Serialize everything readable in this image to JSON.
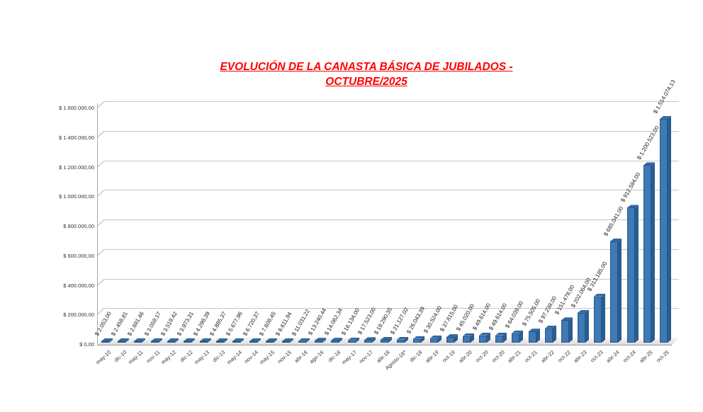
{
  "title": {
    "line1": "EVOLUCIÓN DE LA CANASTA BÁSICA DE JUBILADOS -",
    "line2": "OCTUBRE/2025",
    "color": "#ff0000"
  },
  "chart_data": {
    "type": "bar",
    "title": "EVOLUCIÓN DE LA CANASTA BÁSICA DE JUBILADOS - OCTUBRE/2025",
    "xlabel": "",
    "ylabel": "",
    "ylim": [
      0,
      1600000
    ],
    "grid": "horizontal major gridlines every 200000, 3D excel-style walls",
    "legend": "none",
    "categories": [
      "may-10",
      "dic-10",
      "may-11",
      "nov-11",
      "may-12",
      "dic-12",
      "may-13",
      "dic-13",
      "may-14",
      "nov-14",
      "may-15",
      "nov-15",
      "abr-16",
      "ago-16",
      "dic-16",
      "may-17",
      "nov-17",
      "abr-18",
      "Agosto-18*",
      "dic-18",
      "abr-19",
      "oct-19",
      "abr-20",
      "oct-20",
      "oct-20",
      "abr-21",
      "oct-21",
      "abr-22",
      "oct-22",
      "abr-23",
      "oct-23",
      "abr-24",
      "oct-24",
      "abr-25",
      "oct-25"
    ],
    "values": [
      2053.0,
      2458.81,
      2691.46,
      3059.17,
      3519.42,
      3973.31,
      4298.39,
      4885.37,
      5677.96,
      6720.37,
      7608.45,
      8611.94,
      11031.22,
      13240.44,
      14062.34,
      16134.0,
      17523.0,
      19290.35,
      21127.02,
      26043.39,
      30524.0,
      37815.0,
      45020.0,
      49614.0,
      49614.0,
      64039.0,
      75505.0,
      97238.0,
      151478.0,
      202064.0,
      313185.0,
      685041.0,
      912584.0,
      1200523.0,
      1514074.13
    ],
    "value_labels": [
      "$ 2.053,00",
      "$ 2.458,81",
      "$ 2.691,46",
      "$ 3.059,17",
      "$ 3.519,42",
      "$ 3.973,31",
      "$ 4.298,39",
      "$ 4.885,37",
      "$ 5.677,96",
      "$ 6.720,37",
      "$ 7.608,45",
      "$ 8.611,94",
      "$ 11.031,22",
      "$ 13.240,44",
      "$ 14.062,34",
      "$ 16.134,00",
      "$ 17.523,00",
      "$ 19.290,35",
      "$ 21.127,02",
      "$ 26.043,39",
      "$ 30.524,00",
      "$ 37.815,00",
      "$ 45.020,00",
      "$ 49.614,00",
      "$ 49.614,00",
      "$ 64.039,00",
      "$ 75.505,00",
      "$ 97.238,00",
      "$ 151.478,00",
      "$ 202.064,00",
      "$ 313.185,00",
      "$ 685.041,00",
      "$ 912.584,00",
      "$ 1.200.523,00",
      "$ 1.514.074,13"
    ],
    "y_tick_values": [
      0,
      200000,
      400000,
      600000,
      800000,
      1000000,
      1200000,
      1400000,
      1600000
    ],
    "y_tick_labels": [
      "$ 0,00",
      "$ 200.000,00",
      "$ 400.000,00",
      "$ 600.000,00",
      "$ 800.000,00",
      "$ 1.000.000,00",
      "$ 1.200.000,00",
      "$ 1.400.000,00",
      "$ 1.600.000,00"
    ],
    "colors": {
      "bar_front": "#3d7ab6",
      "bar_side": "#2a5d8f",
      "bar_top": "#35699f",
      "gridline": "#c6c6c6",
      "title": "#ff0000"
    }
  }
}
